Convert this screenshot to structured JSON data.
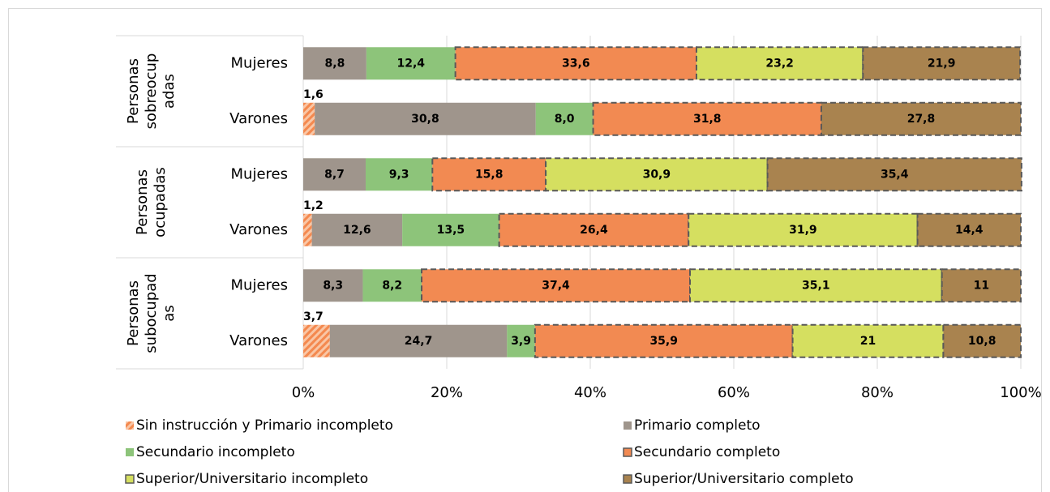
{
  "chart_data": {
    "type": "stacked_barh_100",
    "groups": [
      [
        "Personas",
        "sobreocup",
        "adas"
      ],
      [
        "Personas",
        "ocupadas"
      ],
      [
        "Personas",
        "subocupad",
        "as"
      ]
    ],
    "categories": [
      "Mujeres",
      "Varones",
      "Mujeres",
      "Varones",
      "Mujeres",
      "Varones"
    ],
    "series": [
      {
        "name": "Sin instrucción y Primario incompleto",
        "color": "#f4894f",
        "pattern": "hatch",
        "values": [
          null,
          1.6,
          null,
          1.2,
          null,
          3.7
        ],
        "value_labels": [
          null,
          "1,6",
          null,
          "1,2",
          null,
          "3,7"
        ]
      },
      {
        "name": "Primario completo",
        "color": "#9f958c",
        "values": [
          8.8,
          30.8,
          8.7,
          12.6,
          8.3,
          24.7
        ],
        "value_labels": [
          "8,8",
          "30,8",
          "8,7",
          "12,6",
          "8,3",
          "24,7"
        ]
      },
      {
        "name": "Secundario incompleto",
        "color": "#8dc47a",
        "values": [
          12.4,
          8.0,
          9.3,
          13.5,
          8.2,
          3.9
        ],
        "value_labels": [
          "12,4",
          "8,0",
          "9,3",
          "13,5",
          "8,2",
          "3,9"
        ]
      },
      {
        "name": "Secundario completo",
        "color": "#f28a52",
        "border": "dashed",
        "values": [
          33.6,
          31.8,
          15.8,
          26.4,
          37.4,
          35.9
        ],
        "value_labels": [
          "33,6",
          "31,8",
          "15,8",
          "26,4",
          "37,4",
          "35,9"
        ]
      },
      {
        "name": "Superior/Universitario incompleto",
        "color": "#d5df60",
        "border": "dashed",
        "values": [
          23.2,
          null,
          30.9,
          31.9,
          35.1,
          21
        ],
        "value_labels": [
          "23,2",
          null,
          "30,9",
          "31,9",
          "35,1",
          "21"
        ]
      },
      {
        "name": "Superior/Universitario completo",
        "color": "#a9834f",
        "border": "dashed",
        "values": [
          21.9,
          27.8,
          35.4,
          14.4,
          11,
          10.8
        ],
        "value_labels": [
          "21,9",
          "27,8",
          "35,4",
          "14,4",
          "11",
          "10,8"
        ]
      }
    ],
    "xlim": [
      0,
      100
    ],
    "xticks": [
      {
        "value": 0,
        "label": "0%"
      },
      {
        "value": 20,
        "label": "20%"
      },
      {
        "value": 40,
        "label": "40%"
      },
      {
        "value": 60,
        "label": "60%"
      },
      {
        "value": 80,
        "label": "80%"
      },
      {
        "value": 100,
        "label": "100%"
      }
    ],
    "grid": true
  }
}
